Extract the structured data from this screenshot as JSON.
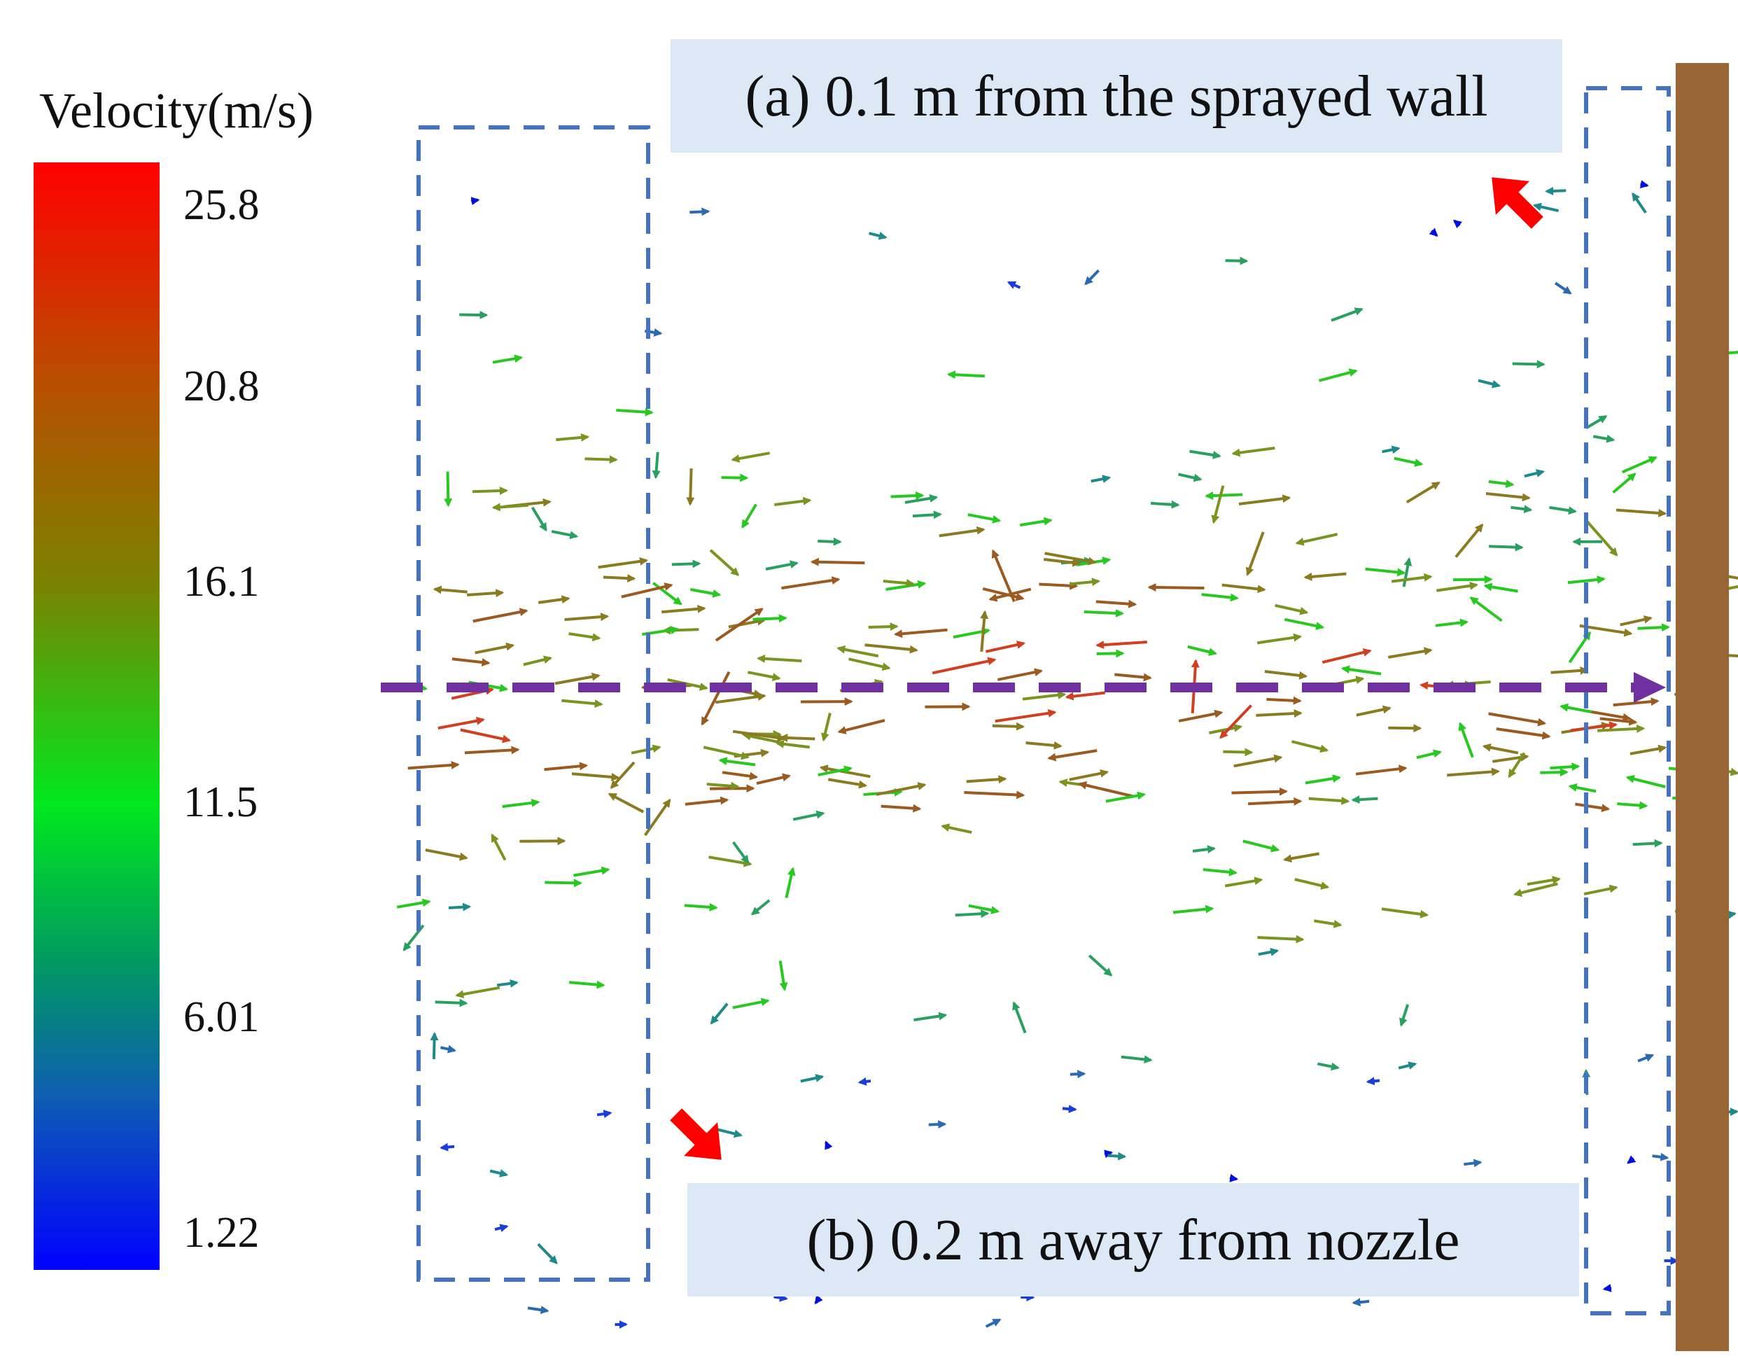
{
  "legend": {
    "title": "Velocity(m/s)",
    "ticks": [
      "25.8",
      "20.8",
      "16.1",
      "11.5",
      "6.01",
      "1.22"
    ],
    "colors": [
      "#ff0000",
      "#b84f00",
      "#7a8200",
      "#00e81e",
      "#009a60",
      "#0e5fb0",
      "#0000ff"
    ]
  },
  "labels": {
    "a": "(a) 0.1 m from the sprayed wall",
    "b": "(b) 0.2 m away from nozzle"
  },
  "colors": {
    "dashed_box": "#4472c4",
    "axis_arrow": "#7030a0",
    "callout_arrow": "#ff0000",
    "wall": "#9a6535",
    "label_bg": "#dde8f6"
  }
}
